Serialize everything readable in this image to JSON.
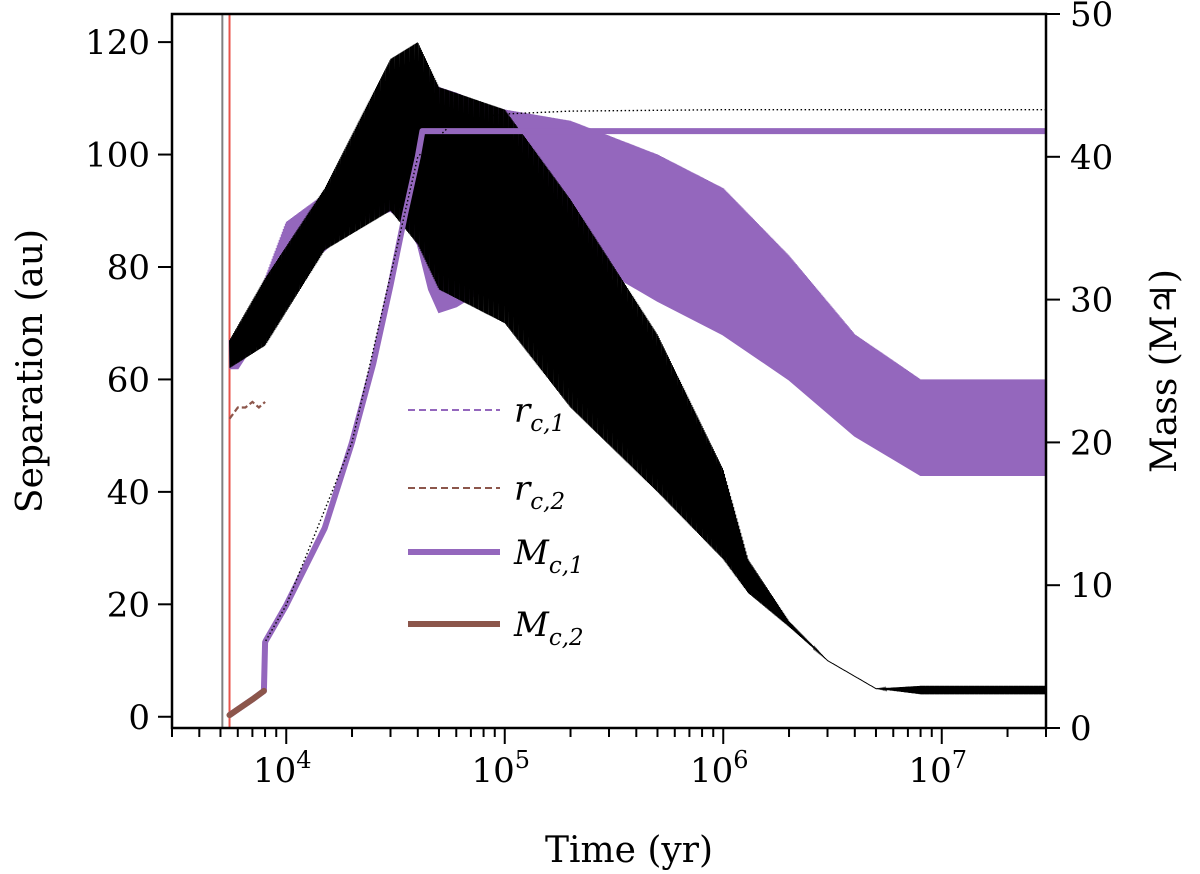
{
  "chart_data": {
    "type": "line",
    "xscale": "log",
    "xlabel": "Time (yr)",
    "ylabel_left": "Separation (au)",
    "ylabel_right": "Mass (M♃)",
    "xlim": [
      3000,
      30000000
    ],
    "ylim_left": [
      -2,
      125
    ],
    "ylim_right": [
      0,
      50
    ],
    "x_tick_labels": [
      {
        "value": 10000,
        "base": "10",
        "exp": "4"
      },
      {
        "value": 100000,
        "base": "10",
        "exp": "5"
      },
      {
        "value": 1000000,
        "base": "10",
        "exp": "6"
      },
      {
        "value": 10000000,
        "base": "10",
        "exp": "7"
      }
    ],
    "y_left_ticks": [
      0,
      20,
      40,
      60,
      80,
      100,
      120
    ],
    "y_right_ticks": [
      0,
      10,
      20,
      30,
      40,
      50
    ],
    "vertical_lines": [
      {
        "x": 5100,
        "color": "#808080"
      },
      {
        "x": 5500,
        "color": "#e8534a"
      }
    ],
    "colors": {
      "purple": "#9467bd",
      "brown": "#8c564b",
      "black": "#000000"
    },
    "legend": {
      "placement": "center-left",
      "entries": [
        {
          "label": "r",
          "sub": "c,1",
          "style": "dashed",
          "color": "#9467bd"
        },
        {
          "label": "r",
          "sub": "c,2",
          "style": "dashed",
          "color": "#8c564b"
        },
        {
          "label": "M",
          "sub": "c,1",
          "style": "solid",
          "color": "#9467bd"
        },
        {
          "label": "M",
          "sub": "c,2",
          "style": "solid",
          "color": "#8c564b"
        }
      ]
    },
    "series": [
      {
        "name": "r_c,1 envelope (au)",
        "axis": "left",
        "style": "band",
        "color": "#9467bd",
        "x": [
          5500,
          6000,
          7000,
          8000,
          10000,
          15000,
          20000,
          25000,
          30000,
          35000,
          40000,
          45000,
          50000,
          60000,
          80000,
          100000,
          200000,
          500000,
          1000000,
          2000000,
          4000000,
          8000000,
          10000000,
          20000000,
          30000000
        ],
        "low": [
          62,
          62,
          66,
          70,
          78,
          83,
          88,
          89,
          90,
          88,
          84,
          76,
          72,
          73,
          76,
          84,
          83,
          74,
          68,
          60,
          50,
          43,
          43,
          43,
          43
        ],
        "high": [
          67,
          68,
          73,
          78,
          88,
          93,
          100,
          108,
          113,
          116,
          116,
          114,
          112,
          111,
          109,
          108,
          106,
          100,
          94,
          82,
          68,
          60,
          60,
          60,
          60
        ]
      },
      {
        "name": "r_c,2 (au)",
        "axis": "left",
        "style": "dashed",
        "color": "#8c564b",
        "x": [
          5500,
          6000,
          6500,
          7000,
          7500,
          8000
        ],
        "y": [
          53,
          55,
          55,
          56,
          55,
          56
        ]
      },
      {
        "name": "M_c,1 (M♃)",
        "axis": "right",
        "style": "solid",
        "color": "#9467bd",
        "x": [
          5500,
          6000,
          7000,
          7900,
          8000,
          8050,
          10000,
          15000,
          20000,
          25000,
          30000,
          35000,
          40000,
          42000,
          45000,
          100000,
          1000000,
          10000000,
          30000000
        ],
        "y": [
          0.9,
          1.3,
          2.0,
          2.6,
          6.0,
          6.1,
          8.6,
          14,
          20,
          25.5,
          31,
          36,
          40,
          41.8,
          41.8,
          41.8,
          41.8,
          41.8,
          41.8
        ]
      },
      {
        "name": "M_c,2 (M♃)",
        "axis": "right",
        "style": "solid",
        "color": "#8c564b",
        "x": [
          5500,
          6000,
          7000,
          7900
        ],
        "y": [
          0.9,
          1.3,
          2.0,
          2.6
        ]
      },
      {
        "name": "black separation envelope (au)",
        "axis": "left",
        "style": "band",
        "color": "#000000",
        "x": [
          5500,
          8000,
          15000,
          30000,
          40000,
          50000,
          100000,
          200000,
          500000,
          1000000,
          1300000,
          2000000,
          3000000,
          5000000,
          8000000,
          30000000
        ],
        "low": [
          62,
          66,
          83,
          90,
          84,
          76,
          70,
          55,
          40,
          28,
          22,
          16,
          10,
          5,
          4,
          4
        ],
        "high": [
          67,
          78,
          94,
          117,
          120,
          112,
          108,
          92,
          68,
          44,
          28,
          17,
          10,
          5,
          5.5,
          5.5
        ]
      },
      {
        "name": "black dotted mass reference (M♃)",
        "axis": "right",
        "style": "dotted",
        "color": "#000000",
        "x": [
          8050,
          10000,
          20000,
          40000,
          60000,
          100000,
          200000,
          1000000,
          30000000
        ],
        "y": [
          6.1,
          8.6,
          20,
          40,
          42.6,
          43.0,
          43.2,
          43.3,
          43.3
        ]
      }
    ]
  }
}
